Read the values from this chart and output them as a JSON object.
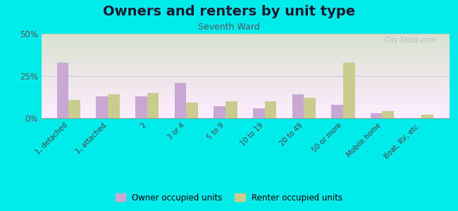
{
  "title": "Owners and renters by unit type",
  "subtitle": "Seventh Ward",
  "categories": [
    "1, detached",
    "1, attached",
    "2",
    "3 or 4",
    "5 to 9",
    "10 to 19",
    "20 to 49",
    "50 or more",
    "Mobile home",
    "Boat, RV, etc."
  ],
  "owner_values": [
    33,
    13,
    13,
    21,
    7,
    6,
    14,
    8,
    3,
    0
  ],
  "renter_values": [
    11,
    14,
    15,
    9,
    10,
    10,
    12,
    33,
    4,
    2
  ],
  "owner_color": "#c9a8d4",
  "renter_color": "#c8cc8e",
  "background_outer": "#00ebeb",
  "ylim": [
    0,
    50
  ],
  "yticks": [
    0,
    25,
    50
  ],
  "ytick_labels": [
    "0%",
    "25%",
    "50%"
  ],
  "grid_color": "#cccccc",
  "title_fontsize": 14,
  "subtitle_fontsize": 9,
  "legend_labels": [
    "Owner occupied units",
    "Renter occupied units"
  ],
  "bar_width": 0.3,
  "watermark": "City-Data.com"
}
